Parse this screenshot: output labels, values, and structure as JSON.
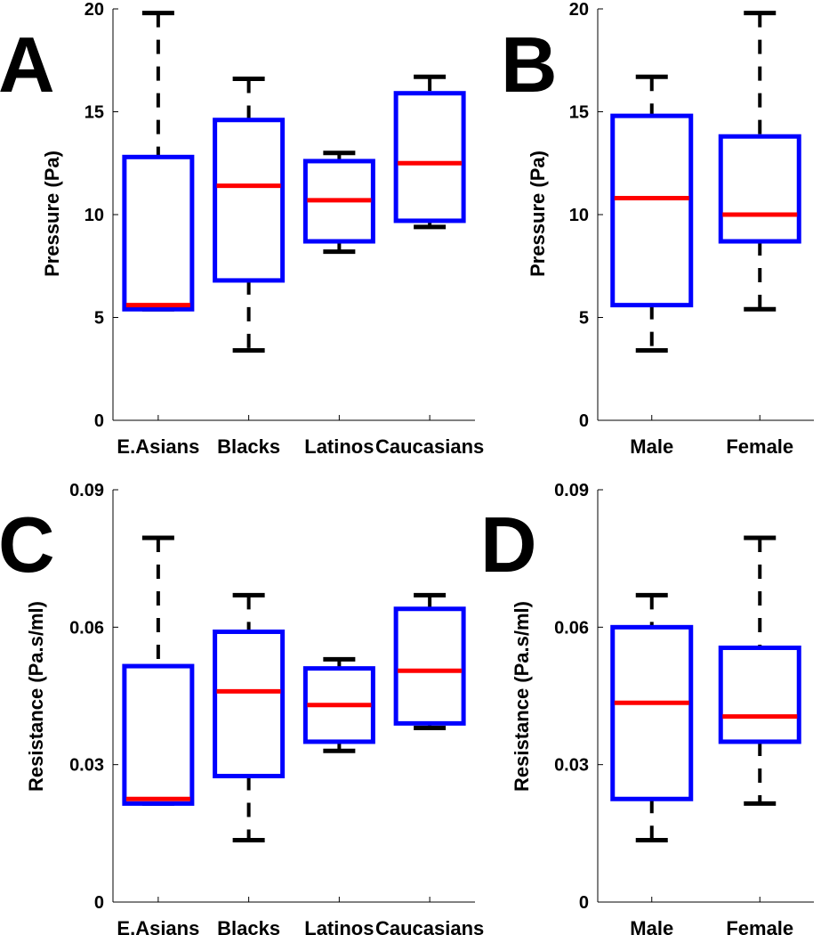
{
  "colors": {
    "box": "#0000ff",
    "median": "#ff0000",
    "whisker": "#000000",
    "axis": "#000000"
  },
  "chart_data": [
    {
      "panel": "A",
      "type": "box",
      "ylabel": "Pressure (Pa)",
      "ylim": [
        0,
        20
      ],
      "yticks": [
        0,
        5,
        10,
        15,
        20
      ],
      "categories": [
        "E.Asians",
        "Blacks",
        "Latinos",
        "Caucasians"
      ],
      "boxes": [
        {
          "min": 5.4,
          "q1": 5.4,
          "median": 5.6,
          "q3": 12.8,
          "max": 19.8
        },
        {
          "min": 3.4,
          "q1": 6.8,
          "median": 11.4,
          "q3": 14.6,
          "max": 16.6
        },
        {
          "min": 8.2,
          "q1": 8.7,
          "median": 10.7,
          "q3": 12.6,
          "max": 13.0
        },
        {
          "min": 9.4,
          "q1": 9.7,
          "median": 12.5,
          "q3": 15.9,
          "max": 16.7
        }
      ]
    },
    {
      "panel": "B",
      "type": "box",
      "ylabel": "Pressure (Pa)",
      "ylim": [
        0,
        20
      ],
      "yticks": [
        0,
        5,
        10,
        15,
        20
      ],
      "categories": [
        "Male",
        "Female"
      ],
      "boxes": [
        {
          "min": 3.4,
          "q1": 5.6,
          "median": 10.8,
          "q3": 14.8,
          "max": 16.7
        },
        {
          "min": 5.4,
          "q1": 8.7,
          "median": 10.0,
          "q3": 13.8,
          "max": 19.8
        }
      ]
    },
    {
      "panel": "C",
      "type": "box",
      "ylabel": "Resistance (Pa.s/ml)",
      "ylim": [
        0,
        0.09
      ],
      "yticks": [
        0,
        0.03,
        0.06,
        0.09
      ],
      "ytick_labels": [
        "0",
        "0.03",
        "0.06",
        "0.09"
      ],
      "categories": [
        "E.Asians",
        "Blacks",
        "Latinos",
        "Caucasians"
      ],
      "boxes": [
        {
          "min": 0.0215,
          "q1": 0.0215,
          "median": 0.0225,
          "q3": 0.0515,
          "max": 0.0795
        },
        {
          "min": 0.0135,
          "q1": 0.0275,
          "median": 0.046,
          "q3": 0.059,
          "max": 0.067
        },
        {
          "min": 0.033,
          "q1": 0.035,
          "median": 0.043,
          "q3": 0.051,
          "max": 0.053
        },
        {
          "min": 0.038,
          "q1": 0.039,
          "median": 0.0505,
          "q3": 0.064,
          "max": 0.067
        }
      ]
    },
    {
      "panel": "D",
      "type": "box",
      "ylabel": "Resistance (Pa.s/ml)",
      "ylim": [
        0,
        0.09
      ],
      "yticks": [
        0,
        0.03,
        0.06,
        0.09
      ],
      "ytick_labels": [
        "0",
        "0.03",
        "0.06",
        "0.09"
      ],
      "categories": [
        "Male",
        "Female"
      ],
      "boxes": [
        {
          "min": 0.0135,
          "q1": 0.0225,
          "median": 0.0435,
          "q3": 0.06,
          "max": 0.067
        },
        {
          "min": 0.0215,
          "q1": 0.035,
          "median": 0.0405,
          "q3": 0.0555,
          "max": 0.0795
        }
      ]
    }
  ]
}
